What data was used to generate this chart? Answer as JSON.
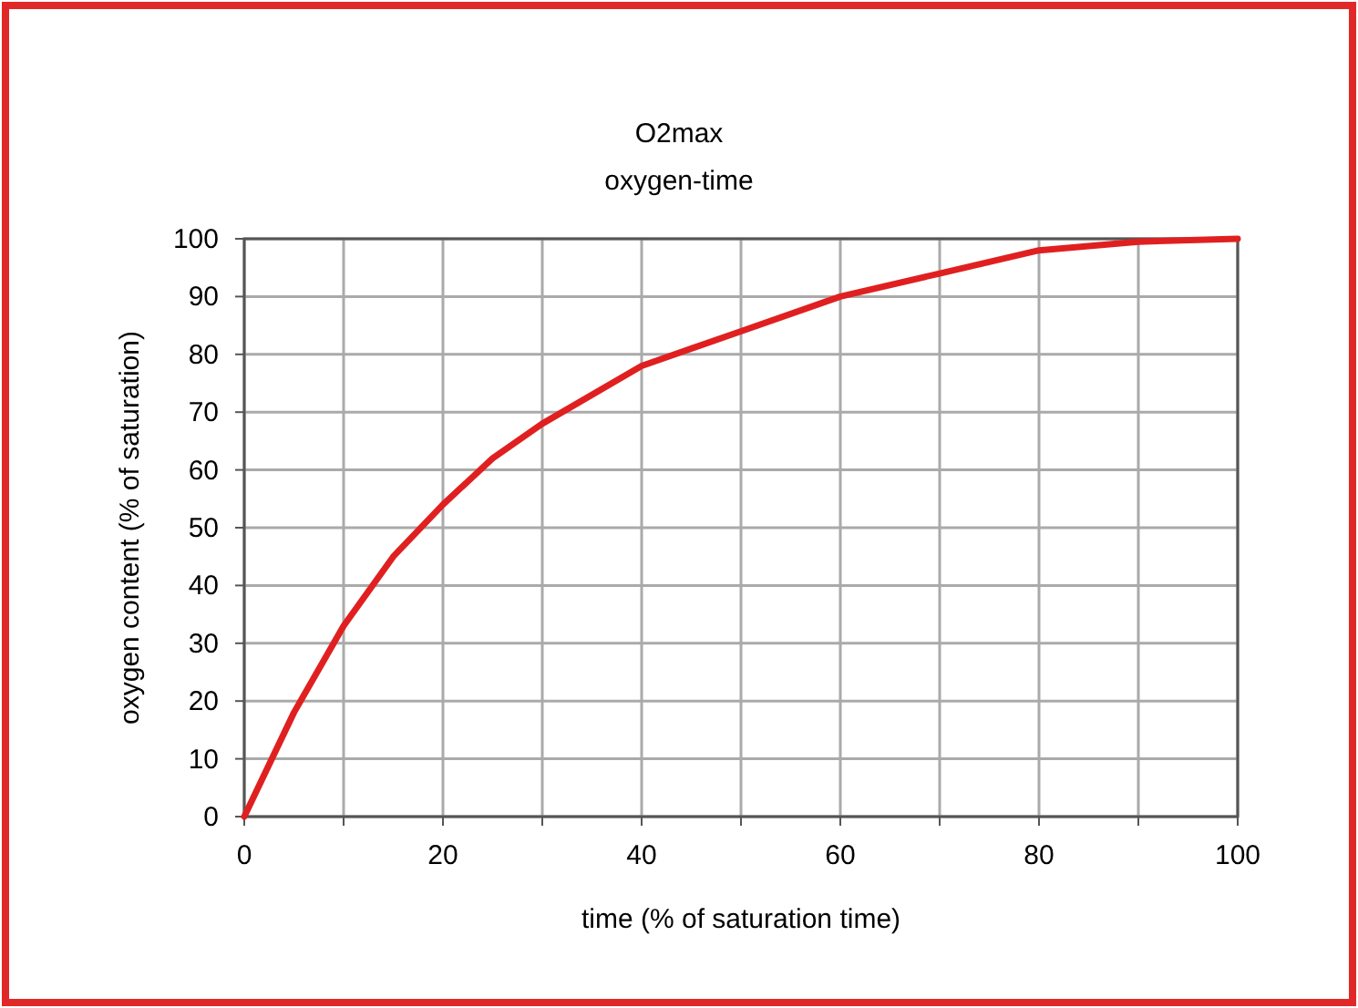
{
  "chart_data": {
    "type": "line",
    "title": "O2max",
    "subtitle": "oxygen-time",
    "xlabel": "time (% of saturation time)",
    "ylabel": "oxygen content (% of saturation)",
    "x": [
      0,
      5,
      10,
      15,
      20,
      25,
      30,
      40,
      50,
      60,
      70,
      80,
      90,
      100
    ],
    "series": [
      {
        "color": "#e02020",
        "values": [
          0,
          18,
          33,
          45,
          54,
          62,
          68,
          78,
          84,
          90,
          94,
          98,
          99.5,
          100
        ]
      }
    ],
    "xlim": [
      0,
      100
    ],
    "ylim": [
      0,
      100
    ],
    "xticks": [
      0,
      {
        "value": 10,
        "label": null
      },
      20,
      {
        "value": 30,
        "label": null
      },
      40,
      {
        "value": 50,
        "label": null
      },
      60,
      {
        "value": 70,
        "label": null
      },
      80,
      {
        "value": 90,
        "label": null
      },
      100
    ],
    "yticks": [
      0,
      10,
      20,
      30,
      40,
      50,
      60,
      70,
      80,
      90,
      100
    ],
    "grid": true,
    "marker": "none",
    "line_style": "solid"
  }
}
